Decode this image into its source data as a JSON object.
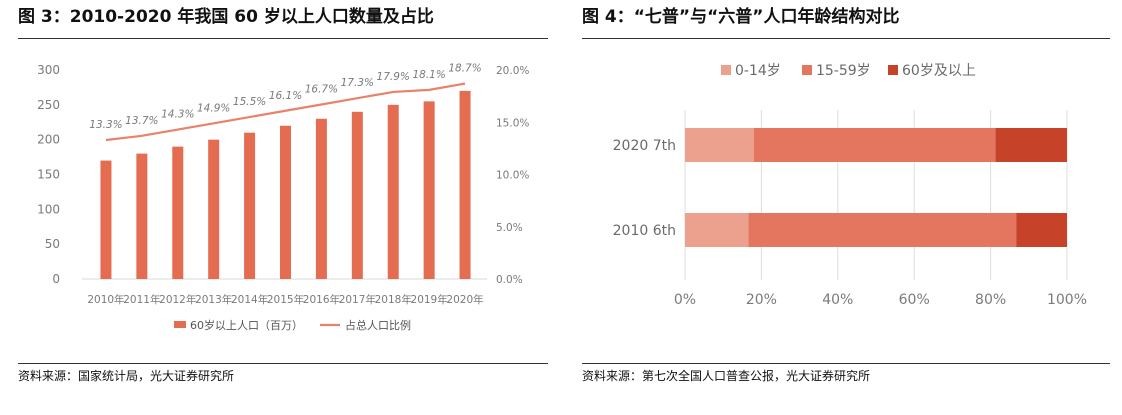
{
  "left": {
    "title": "图 3：2010-2020 年我国 60 岁以上人口数量及占比",
    "source": "资料来源：国家统计局，光大证券研究所"
  },
  "right": {
    "title": "图 4：“七普”与“六普”人口年龄结构对比",
    "source": "资料来源：第七次全国人口普查公报，光大证券研究所"
  },
  "colors": {
    "bar": "#e46c50",
    "line": "#e8826b",
    "seg_0_14": "#eca18e",
    "seg_15_59": "#e4755e",
    "seg_60_plus": "#c6432a"
  },
  "chart_data": [
    {
      "type": "bar",
      "categories": [
        "2010年",
        "2011年",
        "2012年",
        "2013年",
        "2014年",
        "2015年",
        "2016年",
        "2017年",
        "2018年",
        "2019年",
        "2020年"
      ],
      "series": [
        {
          "name": "60岁以上人口（百万）",
          "axis": "left",
          "kind": "bar",
          "values": [
            170,
            180,
            190,
            200,
            210,
            220,
            230,
            240,
            250,
            255,
            270
          ]
        },
        {
          "name": "占总人口比例",
          "axis": "right",
          "kind": "line",
          "values": [
            13.3,
            13.7,
            14.3,
            14.9,
            15.5,
            16.1,
            16.7,
            17.3,
            17.9,
            18.1,
            18.7
          ],
          "labels": [
            "13.3%",
            "13.7%",
            "14.3%",
            "14.9%",
            "15.5%",
            "16.1%",
            "16.7%",
            "17.3%",
            "17.9%",
            "18.1%",
            "18.7%"
          ]
        }
      ],
      "ylim": [
        0,
        300
      ],
      "yticks": [
        "0",
        "50",
        "100",
        "150",
        "200",
        "250",
        "300"
      ],
      "y2lim": [
        0,
        20
      ],
      "y2ticks": [
        "0.0%",
        "5.0%",
        "10.0%",
        "15.0%",
        "20.0%"
      ],
      "legend": "bottom",
      "grid": false
    },
    {
      "type": "bar",
      "orientation": "horizontal",
      "stacked": true,
      "categories": [
        "2020 7th",
        "2010 6th"
      ],
      "series": [
        {
          "name": "0-14岁",
          "values": [
            18,
            16.6
          ]
        },
        {
          "name": "15-59岁",
          "values": [
            63.3,
            70.1
          ]
        },
        {
          "name": "60岁及以上",
          "values": [
            18.7,
            13.3
          ]
        }
      ],
      "xlim": [
        0,
        100
      ],
      "xticks": [
        "0%",
        "20%",
        "40%",
        "60%",
        "80%",
        "100%"
      ],
      "legend": "top",
      "grid": true
    }
  ]
}
